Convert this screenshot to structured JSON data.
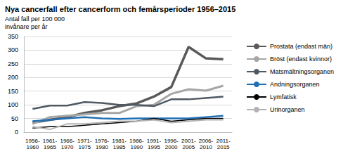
{
  "chart_data": {
    "type": "line",
    "title": "Nya cancerfall efter cancerform och femårsperioder 1956–2015",
    "y_label": "Antal fall per 100 000\ninvånare per år",
    "categories": [
      "1956-1960",
      "1961-1965",
      "1966-1970",
      "1971-1975",
      "1976-1980",
      "1981-1985",
      "1986-1990",
      "1991-1995",
      "1996-2000",
      "2001-2005",
      "2006-2010",
      "2011-2015"
    ],
    "series": [
      {
        "name": "Prostata (endast män)",
        "color": "#595959",
        "values": [
          35,
          45,
          55,
          70,
          80,
          95,
          105,
          130,
          165,
          312,
          270,
          267
        ]
      },
      {
        "name": "Bröst (endast kvinnor)",
        "color": "#a6a6a6",
        "values": [
          30,
          55,
          60,
          65,
          70,
          70,
          95,
          100,
          140,
          157,
          152,
          170
        ]
      },
      {
        "name": "Matsmältningsorganen",
        "color": "#4f5962",
        "values": [
          85,
          97,
          97,
          110,
          107,
          100,
          100,
          95,
          120,
          120,
          125,
          130
        ]
      },
      {
        "name": "Andningsorganen",
        "color": "#1f6fb5",
        "values": [
          40,
          45,
          50,
          55,
          50,
          48,
          50,
          50,
          50,
          50,
          55,
          60
        ]
      },
      {
        "name": "Lymfatisk",
        "color": "#000000",
        "values": [
          15,
          20,
          20,
          25,
          30,
          35,
          40,
          50,
          40,
          45,
          50,
          50
        ]
      },
      {
        "name": "Urinorganen",
        "color": "#b3b3b3",
        "values": [
          20,
          10,
          30,
          30,
          35,
          40,
          40,
          45,
          35,
          40,
          45,
          45
        ]
      }
    ],
    "ylim": [
      0,
      350
    ],
    "yticks": [
      0,
      50,
      100,
      150,
      200,
      250,
      300,
      350
    ],
    "grid": true,
    "legend": "right"
  }
}
